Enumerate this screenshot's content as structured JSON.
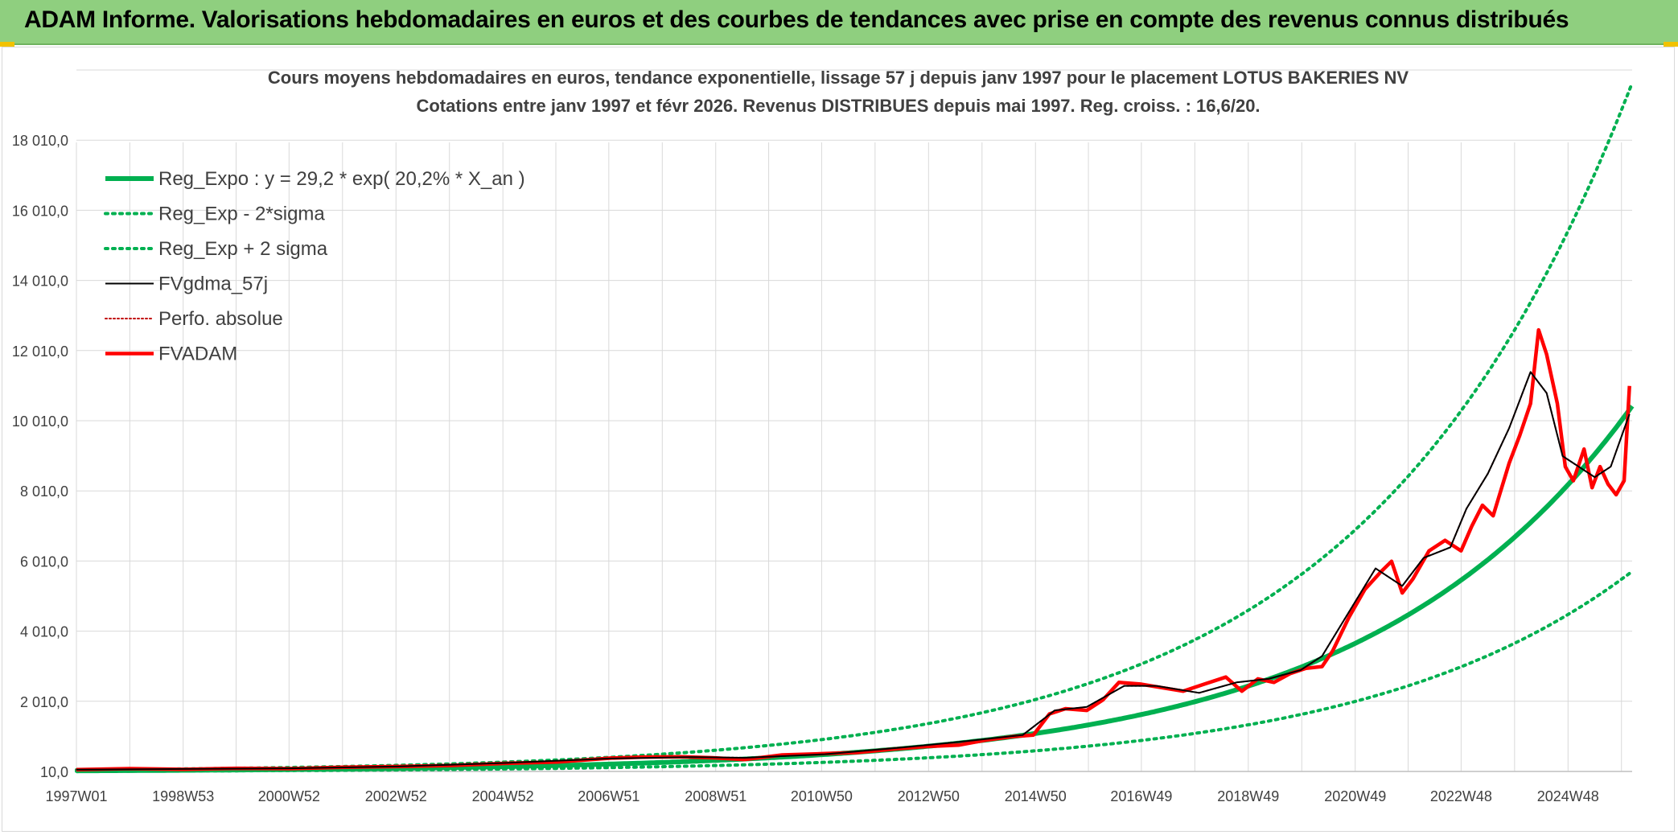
{
  "header": {
    "title": "ADAM Informe. Valorisations hebdomadaires en euros et des courbes de tendances avec prise en compte des revenus connus distribués"
  },
  "chart_data": {
    "type": "line",
    "title": "Cours moyens hebdomadaires en euros, tendance exponentielle, lissage 57 j depuis janv 1997 pour le placement LOTUS BAKERIES NV",
    "subtitle": "Cotations entre janv 1997 et févr 2026. Revenus DISTRIBUES depuis mai 1997. Reg. croiss. : 16,6/20.",
    "xlabel": "",
    "ylabel": "",
    "x_tick_labels": [
      "1997W01",
      "1998W53",
      "2000W52",
      "2002W52",
      "2004W52",
      "2006W51",
      "2008W51",
      "2010W50",
      "2012W50",
      "2014W50",
      "2016W49",
      "2018W49",
      "2020W49",
      "2022W48",
      "2024W48"
    ],
    "x_range": [
      1997.0,
      2026.1
    ],
    "y_tick_labels": [
      "10,0",
      "2 010,0",
      "4 010,0",
      "6 010,0",
      "8 010,0",
      "10 010,0",
      "12 010,0",
      "14 010,0",
      "16 010,0",
      "18 010,0"
    ],
    "ylim": [
      10,
      20010
    ],
    "grid": true,
    "legend_position": "top-left",
    "series": [
      {
        "name": "Reg_Expo : y = 29,2 * exp( 20,2% *  X_an )",
        "color": "#00b050",
        "style": "solid-thick",
        "formula": {
          "a": 29.2,
          "b": 0.202,
          "x0": 1997.0
        }
      },
      {
        "name": "Reg_Exp - 2*sigma",
        "color": "#00b050",
        "style": "dotted",
        "formula": {
          "a": 16.0,
          "b": 0.202,
          "x0": 1997.0
        }
      },
      {
        "name": "Reg_Exp + 2 sigma",
        "color": "#00b050",
        "style": "dotted",
        "formula": {
          "a": 55.0,
          "b": 0.202,
          "x0": 1997.0
        }
      },
      {
        "name": "FVgdma_57j",
        "color": "#000000",
        "style": "solid",
        "x": [
          1997.0,
          1999.0,
          2001.0,
          2003.0,
          2005.0,
          2007.0,
          2008.5,
          2009.5,
          2011.0,
          2012.5,
          2013.5,
          2014.7,
          2015.3,
          2015.9,
          2016.6,
          2017.2,
          2018.0,
          2018.7,
          2019.3,
          2019.9,
          2020.3,
          2020.7,
          2021.3,
          2021.8,
          2022.2,
          2022.7,
          2023.0,
          2023.4,
          2023.8,
          2024.2,
          2024.5,
          2024.8,
          2025.1,
          2025.4,
          2025.7,
          2026.05
        ],
        "y": [
          60,
          80,
          100,
          150,
          250,
          380,
          420,
          400,
          500,
          700,
          850,
          1050,
          1750,
          1850,
          2450,
          2450,
          2250,
          2550,
          2650,
          2900,
          3300,
          4300,
          5800,
          5300,
          6100,
          6400,
          7500,
          8500,
          9800,
          11400,
          10800,
          9000,
          8700,
          8400,
          8700,
          10200
        ]
      },
      {
        "name": "Perfo. absolue",
        "color": "#c00000",
        "style": "dotted",
        "x": [
          1997.0,
          1999.0,
          2001.0,
          2003.0,
          2005.0,
          2007.0,
          2008.5,
          2009.5,
          2011.0,
          2012.5,
          2013.5,
          2014.7,
          2015.3,
          2015.9,
          2016.6,
          2017.2,
          2018.0,
          2018.7,
          2019.3,
          2019.9,
          2020.3,
          2020.7,
          2021.3,
          2021.8,
          2022.2,
          2022.7,
          2023.0,
          2023.4,
          2023.8,
          2024.2,
          2024.5,
          2024.8,
          2025.1,
          2025.4,
          2025.7,
          2026.05
        ],
        "y": [
          60,
          80,
          100,
          150,
          250,
          380,
          420,
          400,
          500,
          700,
          850,
          1050,
          1750,
          1850,
          2450,
          2450,
          2250,
          2550,
          2650,
          2900,
          3300,
          4300,
          5800,
          5300,
          6100,
          6400,
          7500,
          8500,
          9800,
          11400,
          10800,
          9000,
          8700,
          8400,
          8700,
          10200
        ]
      },
      {
        "name": "FVADAM",
        "color": "#ff0000",
        "style": "solid-thick",
        "x": [
          1997.0,
          1998.0,
          1999.0,
          2000.0,
          2001.0,
          2002.0,
          2003.0,
          2004.0,
          2005.0,
          2006.0,
          2007.0,
          2007.6,
          2008.3,
          2008.9,
          2009.5,
          2010.2,
          2011.0,
          2011.6,
          2012.3,
          2012.9,
          2013.5,
          2014.0,
          2014.5,
          2014.9,
          2015.2,
          2015.5,
          2015.9,
          2016.2,
          2016.5,
          2016.9,
          2017.3,
          2017.7,
          2018.1,
          2018.5,
          2018.8,
          2019.1,
          2019.4,
          2019.7,
          2020.0,
          2020.3,
          2020.5,
          2020.8,
          2021.1,
          2021.4,
          2021.6,
          2021.8,
          2022.0,
          2022.3,
          2022.6,
          2022.9,
          2023.1,
          2023.3,
          2023.5,
          2023.8,
          2024.0,
          2024.2,
          2024.35,
          2024.5,
          2024.7,
          2024.85,
          2025.0,
          2025.2,
          2025.35,
          2025.5,
          2025.65,
          2025.8,
          2025.95,
          2026.05
        ],
        "y": [
          60,
          90,
          70,
          100,
          90,
          130,
          150,
          180,
          240,
          280,
          390,
          420,
          430,
          400,
          350,
          480,
          520,
          550,
          650,
          720,
          760,
          900,
          1000,
          1050,
          1650,
          1800,
          1750,
          2050,
          2550,
          2500,
          2400,
          2300,
          2500,
          2700,
          2300,
          2650,
          2550,
          2800,
          2950,
          3000,
          3450,
          4400,
          5200,
          5700,
          6000,
          5100,
          5500,
          6300,
          6600,
          6300,
          7000,
          7600,
          7300,
          8800,
          9600,
          10500,
          12600,
          11900,
          10500,
          8700,
          8300,
          9200,
          8100,
          8700,
          8200,
          7900,
          8300,
          11000
        ]
      }
    ]
  }
}
